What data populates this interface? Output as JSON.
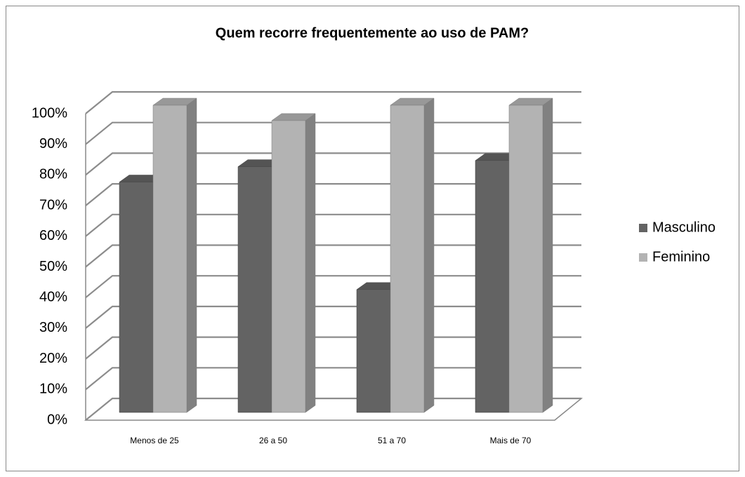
{
  "chart_data": {
    "type": "bar3d",
    "title": "Quem recorre frequentemente ao uso de PAM?",
    "categories": [
      "Menos de 25",
      "26 a 50",
      "51 a 70",
      "Mais de 70"
    ],
    "series": [
      {
        "name": "Masculino",
        "color": "#636363",
        "values": [
          75,
          80,
          40,
          82
        ]
      },
      {
        "name": "Feminino",
        "color": "#b3b3b3",
        "values": [
          100,
          95,
          100,
          100
        ]
      }
    ],
    "ylim": [
      0,
      100
    ],
    "yticks": [
      {
        "value": 0,
        "label": "0%"
      },
      {
        "value": 10,
        "label": "10%"
      },
      {
        "value": 20,
        "label": "20%"
      },
      {
        "value": 30,
        "label": "30%"
      },
      {
        "value": 40,
        "label": "40%"
      },
      {
        "value": 50,
        "label": "50%"
      },
      {
        "value": 60,
        "label": "60%"
      },
      {
        "value": 70,
        "label": "70%"
      },
      {
        "value": 80,
        "label": "80%"
      },
      {
        "value": 90,
        "label": "90%"
      },
      {
        "value": 100,
        "label": "100%"
      }
    ],
    "grid": true,
    "legend": "right"
  }
}
